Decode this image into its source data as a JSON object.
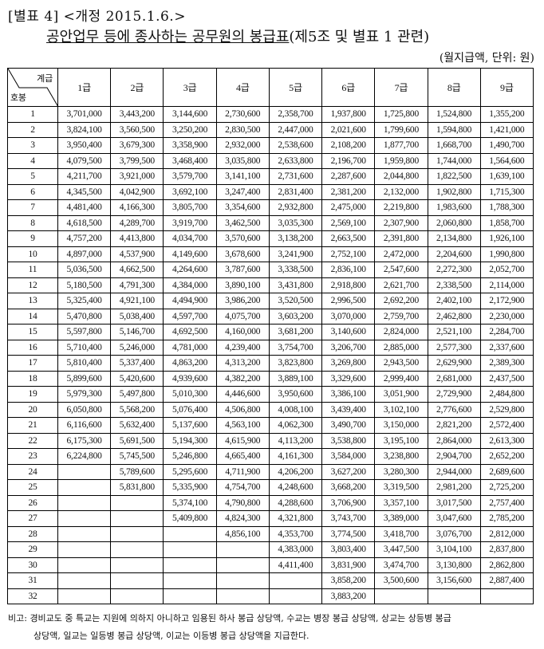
{
  "header": {
    "title": "[별표 4] <개정 2015.1.6.>",
    "subtitle_underlined": "공안업무 등에 종사하는 공무원의 봉급표",
    "subtitle_rest": "(제5조 및 별표 1 관련)",
    "unit": "(월지급액, 단위:  원)"
  },
  "table": {
    "corner_top": "계급",
    "corner_bottom": "호봉",
    "columns": [
      "1급",
      "2급",
      "3급",
      "4급",
      "5급",
      "6급",
      "7급",
      "8급",
      "9급"
    ],
    "rows": [
      [
        "1",
        "3,701,000",
        "3,443,200",
        "3,144,600",
        "2,730,600",
        "2,358,700",
        "1,937,800",
        "1,725,800",
        "1,524,800",
        "1,355,200"
      ],
      [
        "2",
        "3,824,100",
        "3,560,500",
        "3,250,200",
        "2,830,500",
        "2,447,000",
        "2,021,600",
        "1,799,600",
        "1,594,800",
        "1,421,000"
      ],
      [
        "3",
        "3,950,400",
        "3,679,300",
        "3,358,900",
        "2,932,000",
        "2,538,600",
        "2,108,200",
        "1,877,700",
        "1,668,700",
        "1,490,700"
      ],
      [
        "4",
        "4,079,500",
        "3,799,500",
        "3,468,400",
        "3,035,800",
        "2,633,800",
        "2,196,700",
        "1,959,800",
        "1,744,000",
        "1,564,600"
      ],
      [
        "5",
        "4,211,700",
        "3,921,000",
        "3,579,700",
        "3,141,100",
        "2,731,600",
        "2,287,600",
        "2,044,800",
        "1,822,500",
        "1,639,100"
      ],
      [
        "6",
        "4,345,500",
        "4,042,900",
        "3,692,100",
        "3,247,400",
        "2,831,400",
        "2,381,200",
        "2,132,000",
        "1,902,800",
        "1,715,300"
      ],
      [
        "7",
        "4,481,400",
        "4,166,300",
        "3,805,700",
        "3,354,600",
        "2,932,800",
        "2,475,000",
        "2,219,800",
        "1,983,600",
        "1,788,300"
      ],
      [
        "8",
        "4,618,500",
        "4,289,700",
        "3,919,700",
        "3,462,500",
        "3,035,300",
        "2,569,100",
        "2,307,900",
        "2,060,800",
        "1,858,700"
      ],
      [
        "9",
        "4,757,200",
        "4,413,800",
        "4,034,700",
        "3,570,600",
        "3,138,200",
        "2,663,500",
        "2,391,800",
        "2,134,800",
        "1,926,100"
      ],
      [
        "10",
        "4,897,000",
        "4,537,900",
        "4,149,600",
        "3,678,600",
        "3,241,900",
        "2,752,100",
        "2,472,000",
        "2,204,600",
        "1,990,800"
      ],
      [
        "11",
        "5,036,500",
        "4,662,500",
        "4,264,600",
        "3,787,600",
        "3,338,500",
        "2,836,100",
        "2,547,600",
        "2,272,300",
        "2,052,700"
      ],
      [
        "12",
        "5,180,500",
        "4,791,300",
        "4,384,000",
        "3,890,100",
        "3,431,800",
        "2,918,800",
        "2,621,700",
        "2,338,500",
        "2,114,000"
      ],
      [
        "13",
        "5,325,400",
        "4,921,100",
        "4,494,900",
        "3,986,200",
        "3,520,500",
        "2,996,500",
        "2,692,200",
        "2,402,100",
        "2,172,900"
      ],
      [
        "14",
        "5,470,800",
        "5,038,400",
        "4,597,700",
        "4,075,700",
        "3,603,200",
        "3,070,000",
        "2,759,700",
        "2,462,800",
        "2,230,000"
      ],
      [
        "15",
        "5,597,800",
        "5,146,700",
        "4,692,500",
        "4,160,000",
        "3,681,200",
        "3,140,600",
        "2,824,000",
        "2,521,100",
        "2,284,700"
      ],
      [
        "16",
        "5,710,400",
        "5,246,000",
        "4,781,000",
        "4,239,400",
        "3,754,700",
        "3,206,700",
        "2,885,000",
        "2,577,300",
        "2,337,600"
      ],
      [
        "17",
        "5,810,400",
        "5,337,400",
        "4,863,200",
        "4,313,200",
        "3,823,800",
        "3,269,800",
        "2,943,500",
        "2,629,900",
        "2,389,300"
      ],
      [
        "18",
        "5,899,600",
        "5,420,600",
        "4,939,600",
        "4,382,200",
        "3,889,100",
        "3,329,600",
        "2,999,400",
        "2,681,000",
        "2,437,500"
      ],
      [
        "19",
        "5,979,300",
        "5,497,800",
        "5,010,300",
        "4,446,600",
        "3,950,600",
        "3,386,100",
        "3,051,900",
        "2,729,900",
        "2,484,800"
      ],
      [
        "20",
        "6,050,800",
        "5,568,200",
        "5,076,400",
        "4,506,800",
        "4,008,100",
        "3,439,400",
        "3,102,100",
        "2,776,600",
        "2,529,800"
      ],
      [
        "21",
        "6,116,600",
        "5,632,400",
        "5,137,600",
        "4,563,100",
        "4,062,300",
        "3,490,700",
        "3,150,000",
        "2,821,200",
        "2,572,400"
      ],
      [
        "22",
        "6,175,300",
        "5,691,500",
        "5,194,300",
        "4,615,900",
        "4,113,200",
        "3,538,800",
        "3,195,100",
        "2,864,000",
        "2,613,300"
      ],
      [
        "23",
        "6,224,800",
        "5,745,500",
        "5,246,800",
        "4,665,400",
        "4,161,300",
        "3,584,000",
        "3,238,800",
        "2,904,700",
        "2,652,200"
      ],
      [
        "24",
        "",
        "5,789,600",
        "5,295,600",
        "4,711,900",
        "4,206,200",
        "3,627,200",
        "3,280,300",
        "2,944,000",
        "2,689,600"
      ],
      [
        "25",
        "",
        "5,831,800",
        "5,335,900",
        "4,754,700",
        "4,248,600",
        "3,668,200",
        "3,319,500",
        "2,981,200",
        "2,725,200"
      ],
      [
        "26",
        "",
        "",
        "5,374,100",
        "4,790,800",
        "4,288,600",
        "3,706,900",
        "3,357,100",
        "3,017,500",
        "2,757,400"
      ],
      [
        "27",
        "",
        "",
        "5,409,800",
        "4,824,300",
        "4,321,800",
        "3,743,700",
        "3,389,000",
        "3,047,600",
        "2,785,200"
      ],
      [
        "28",
        "",
        "",
        "",
        "4,856,100",
        "4,353,700",
        "3,774,500",
        "3,418,700",
        "3,076,700",
        "2,812,000"
      ],
      [
        "29",
        "",
        "",
        "",
        "",
        "4,383,000",
        "3,803,400",
        "3,447,500",
        "3,104,100",
        "2,837,800"
      ],
      [
        "30",
        "",
        "",
        "",
        "",
        "4,411,400",
        "3,831,900",
        "3,474,700",
        "3,130,800",
        "2,862,800"
      ],
      [
        "31",
        "",
        "",
        "",
        "",
        "",
        "3,858,200",
        "3,500,600",
        "3,156,600",
        "2,887,400"
      ],
      [
        "32",
        "",
        "",
        "",
        "",
        "",
        "3,883,200",
        "",
        "",
        ""
      ]
    ]
  },
  "note": {
    "line1": "비고: 경비교도 중 특교는 지원에 의하지 아니하고 임용된 하사 봉급 상당액, 수교는 병장 봉급 상당액, 상교는 상등병 봉급",
    "line2": "상당액, 일교는 일등병 봉급 상당액, 이교는 이등병 봉급 상당액을 지급한다."
  }
}
